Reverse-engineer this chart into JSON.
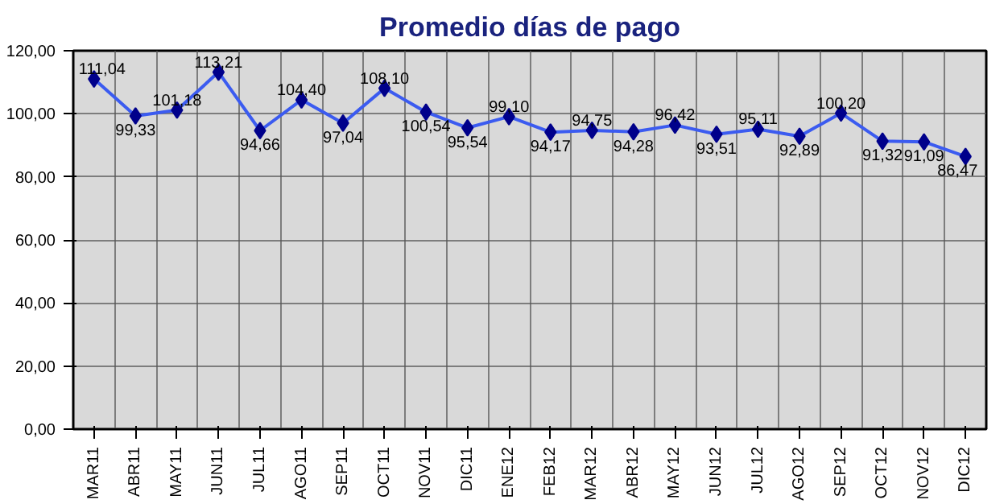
{
  "chart_data": {
    "type": "line",
    "title": "Promedio días de pago",
    "categories": [
      "MAR11",
      "ABR11",
      "MAY11",
      "JUN11",
      "JUL11",
      "AGO11",
      "SEP11",
      "OCT11",
      "NOV11",
      "DIC11",
      "ENE12",
      "FEB12",
      "MAR12",
      "ABR12",
      "MAY12",
      "JUN12",
      "JUL12",
      "AGO12",
      "SEP12",
      "OCT12",
      "NOV12",
      "DIC12"
    ],
    "series": [
      {
        "color": "#3b5bf0",
        "values": [
          111.04,
          99.33,
          101.18,
          113.21,
          94.66,
          104.4,
          97.04,
          108.1,
          100.54,
          95.54,
          99.1,
          94.17,
          94.75,
          94.28,
          96.42,
          93.51,
          95.11,
          92.89,
          100.2,
          91.32,
          91.09,
          86.47
        ],
        "value_labels": [
          "111,04",
          "99,33",
          "101,18",
          "113,21",
          "94,66",
          "104,40",
          "97,04",
          "108,10",
          "100,54",
          "95,54",
          "99,10",
          "94,17",
          "94,75",
          "94,28",
          "96,42",
          "93,51",
          "95,11",
          "92,89",
          "100,20",
          "91,32",
          "91,09",
          "86,47"
        ]
      }
    ],
    "ylim": [
      0,
      120
    ],
    "yticks": [
      {
        "value": 0,
        "label": "0,00"
      },
      {
        "value": 20,
        "label": "20,00"
      },
      {
        "value": 40,
        "label": "40,00"
      },
      {
        "value": 60,
        "label": "60,00"
      },
      {
        "value": 80,
        "label": "80,00"
      },
      {
        "value": 100,
        "label": "100,00"
      },
      {
        "value": 120,
        "label": "120,00"
      }
    ],
    "grid": true,
    "marker": "diamond",
    "line_style": "solid"
  }
}
